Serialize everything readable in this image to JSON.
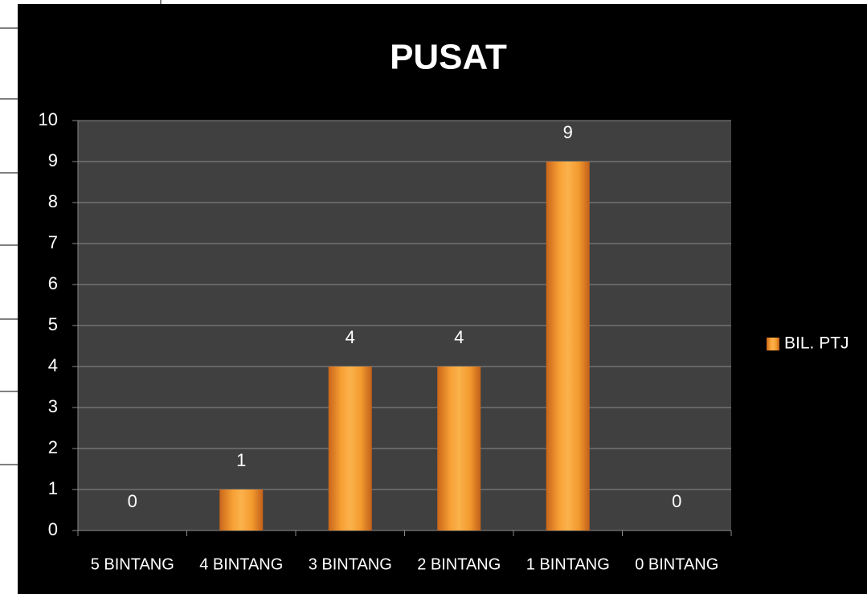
{
  "chart_data": {
    "type": "bar",
    "title": "PUSAT",
    "categories": [
      "5 BINTANG",
      "4 BINTANG",
      "3 BINTANG",
      "2 BINTANG",
      "1 BINTANG",
      "0 BINTANG"
    ],
    "series": [
      {
        "name": "BIL. PTJ",
        "color": "#f39a2e",
        "values": [
          0,
          1,
          4,
          4,
          9,
          0
        ]
      }
    ],
    "ylim": [
      0,
      10
    ],
    "yticks": [
      0,
      1,
      2,
      3,
      4,
      5,
      6,
      7,
      8,
      9,
      10
    ],
    "grid": true,
    "legend": "right",
    "data_labels": true
  }
}
